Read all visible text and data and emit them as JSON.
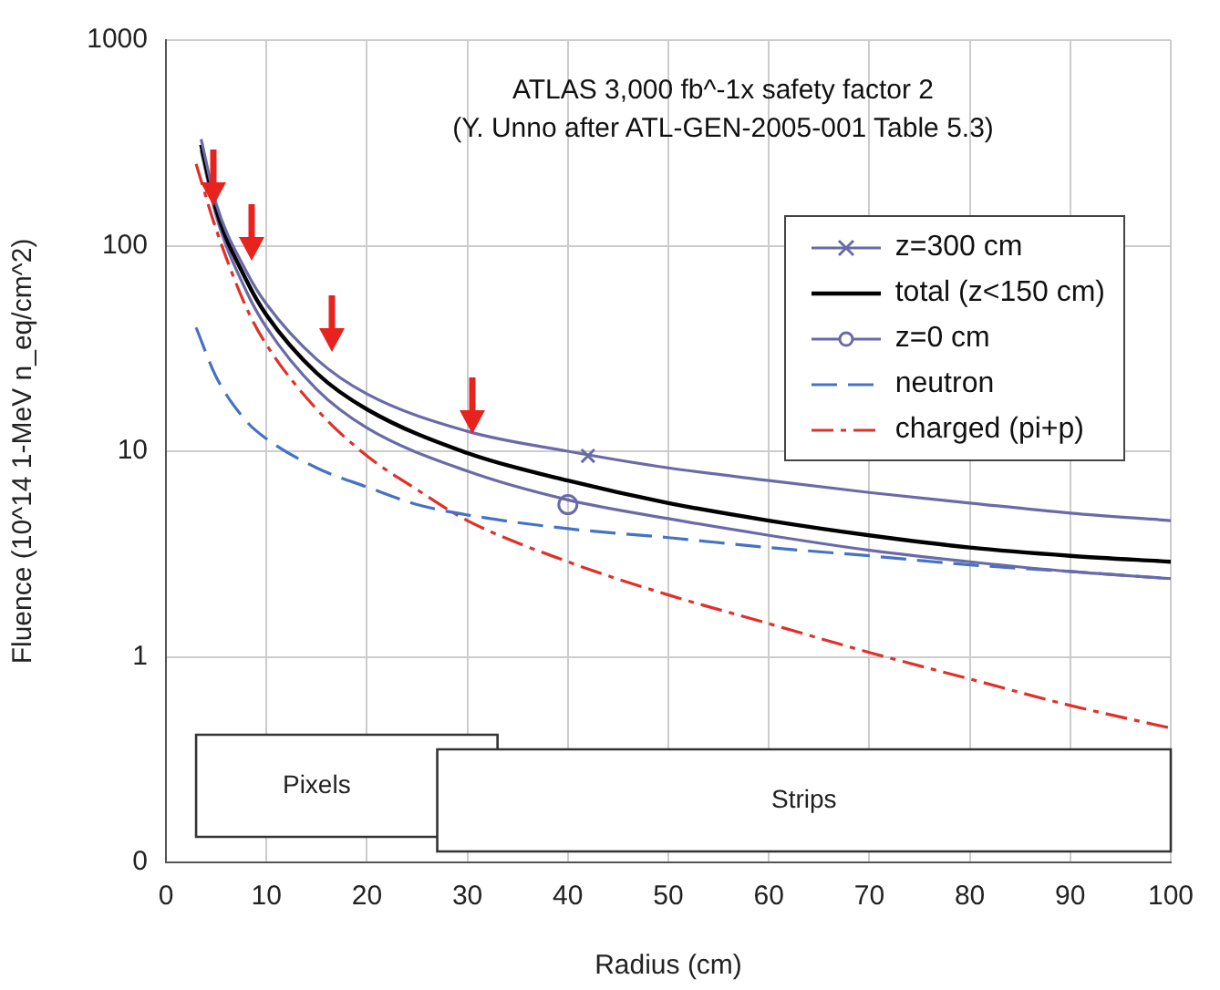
{
  "chart_data": {
    "type": "line",
    "title": "ATLAS 3,000 fb^-1x safety factor 2",
    "subtitle": "(Y. Unno after ATL-GEN-2005-001 Table 5.3)",
    "xlabel": "Radius (cm)",
    "ylabel": "Fluence (10^14 1-MeV n_eq/cm^2)",
    "log": "y",
    "grid": true,
    "legend": "right",
    "marker": "none",
    "xlim": [
      0,
      100
    ],
    "xticks": [
      0,
      10,
      20,
      30,
      40,
      50,
      60,
      70,
      80,
      90,
      100
    ],
    "ylim": [
      0.1,
      1000
    ],
    "yticks": [
      {
        "value": 0.1,
        "label": "0"
      },
      1,
      10,
      100,
      1000
    ],
    "x": [
      3.5,
      5,
      8,
      10,
      15,
      20,
      30,
      40,
      50,
      60,
      70,
      80,
      90,
      100
    ],
    "series": [
      {
        "name": "z=300 cm",
        "color": "#6a6aa8",
        "values": [
          330,
          160,
          75,
          52,
          28,
          19,
          12.5,
          10,
          8.3,
          7.2,
          6.3,
          5.6,
          5.0,
          4.6
        ]
      },
      {
        "name": "total (z<150 cm)",
        "color": "#000000",
        "values": [
          310,
          150,
          68,
          46,
          24,
          16,
          9.8,
          7.2,
          5.6,
          4.6,
          3.9,
          3.4,
          3.1,
          2.9
        ]
      },
      {
        "name": "z=0 cm",
        "color": "#6a6aa8",
        "values": [
          290,
          140,
          60,
          40,
          20,
          13,
          8,
          5.8,
          4.7,
          3.9,
          3.3,
          2.9,
          2.6,
          2.4
        ]
      },
      {
        "name": "neutron",
        "color": "#4472c4",
        "line_style": "dashed",
        "x": [
          3,
          5,
          8,
          10,
          15,
          20,
          25,
          30,
          40,
          50,
          60,
          70,
          80,
          90,
          100
        ],
        "values": [
          40,
          23,
          14,
          11.5,
          8.3,
          6.7,
          5.5,
          4.9,
          4.2,
          3.8,
          3.4,
          3.1,
          2.8,
          2.6,
          2.4
        ]
      },
      {
        "name": "charged (pi+p)",
        "color": "#e0302a",
        "line_style": "dashed",
        "x": [
          3,
          5,
          8,
          10,
          15,
          20,
          25,
          30,
          40,
          50,
          60,
          70,
          80,
          90,
          100
        ],
        "values": [
          250,
          120,
          50,
          33,
          16,
          9.5,
          6.5,
          4.6,
          2.9,
          2.0,
          1.45,
          1.05,
          0.78,
          0.58,
          0.45
        ]
      },
      {
        "type": "scatter",
        "color": "#6a6aa8",
        "marker": "cross",
        "x": [
          42
        ],
        "values": [
          9.5
        ]
      },
      {
        "type": "scatter",
        "color": "#6a6aa8",
        "marker": "circle",
        "x": [
          40
        ],
        "values": [
          5.5
        ]
      }
    ],
    "bands": [
      {
        "axis": "x",
        "from": 3,
        "to": 33,
        "label": "Pixels"
      },
      {
        "axis": "x",
        "from": 27,
        "to": 100,
        "label": "Strips"
      }
    ]
  }
}
